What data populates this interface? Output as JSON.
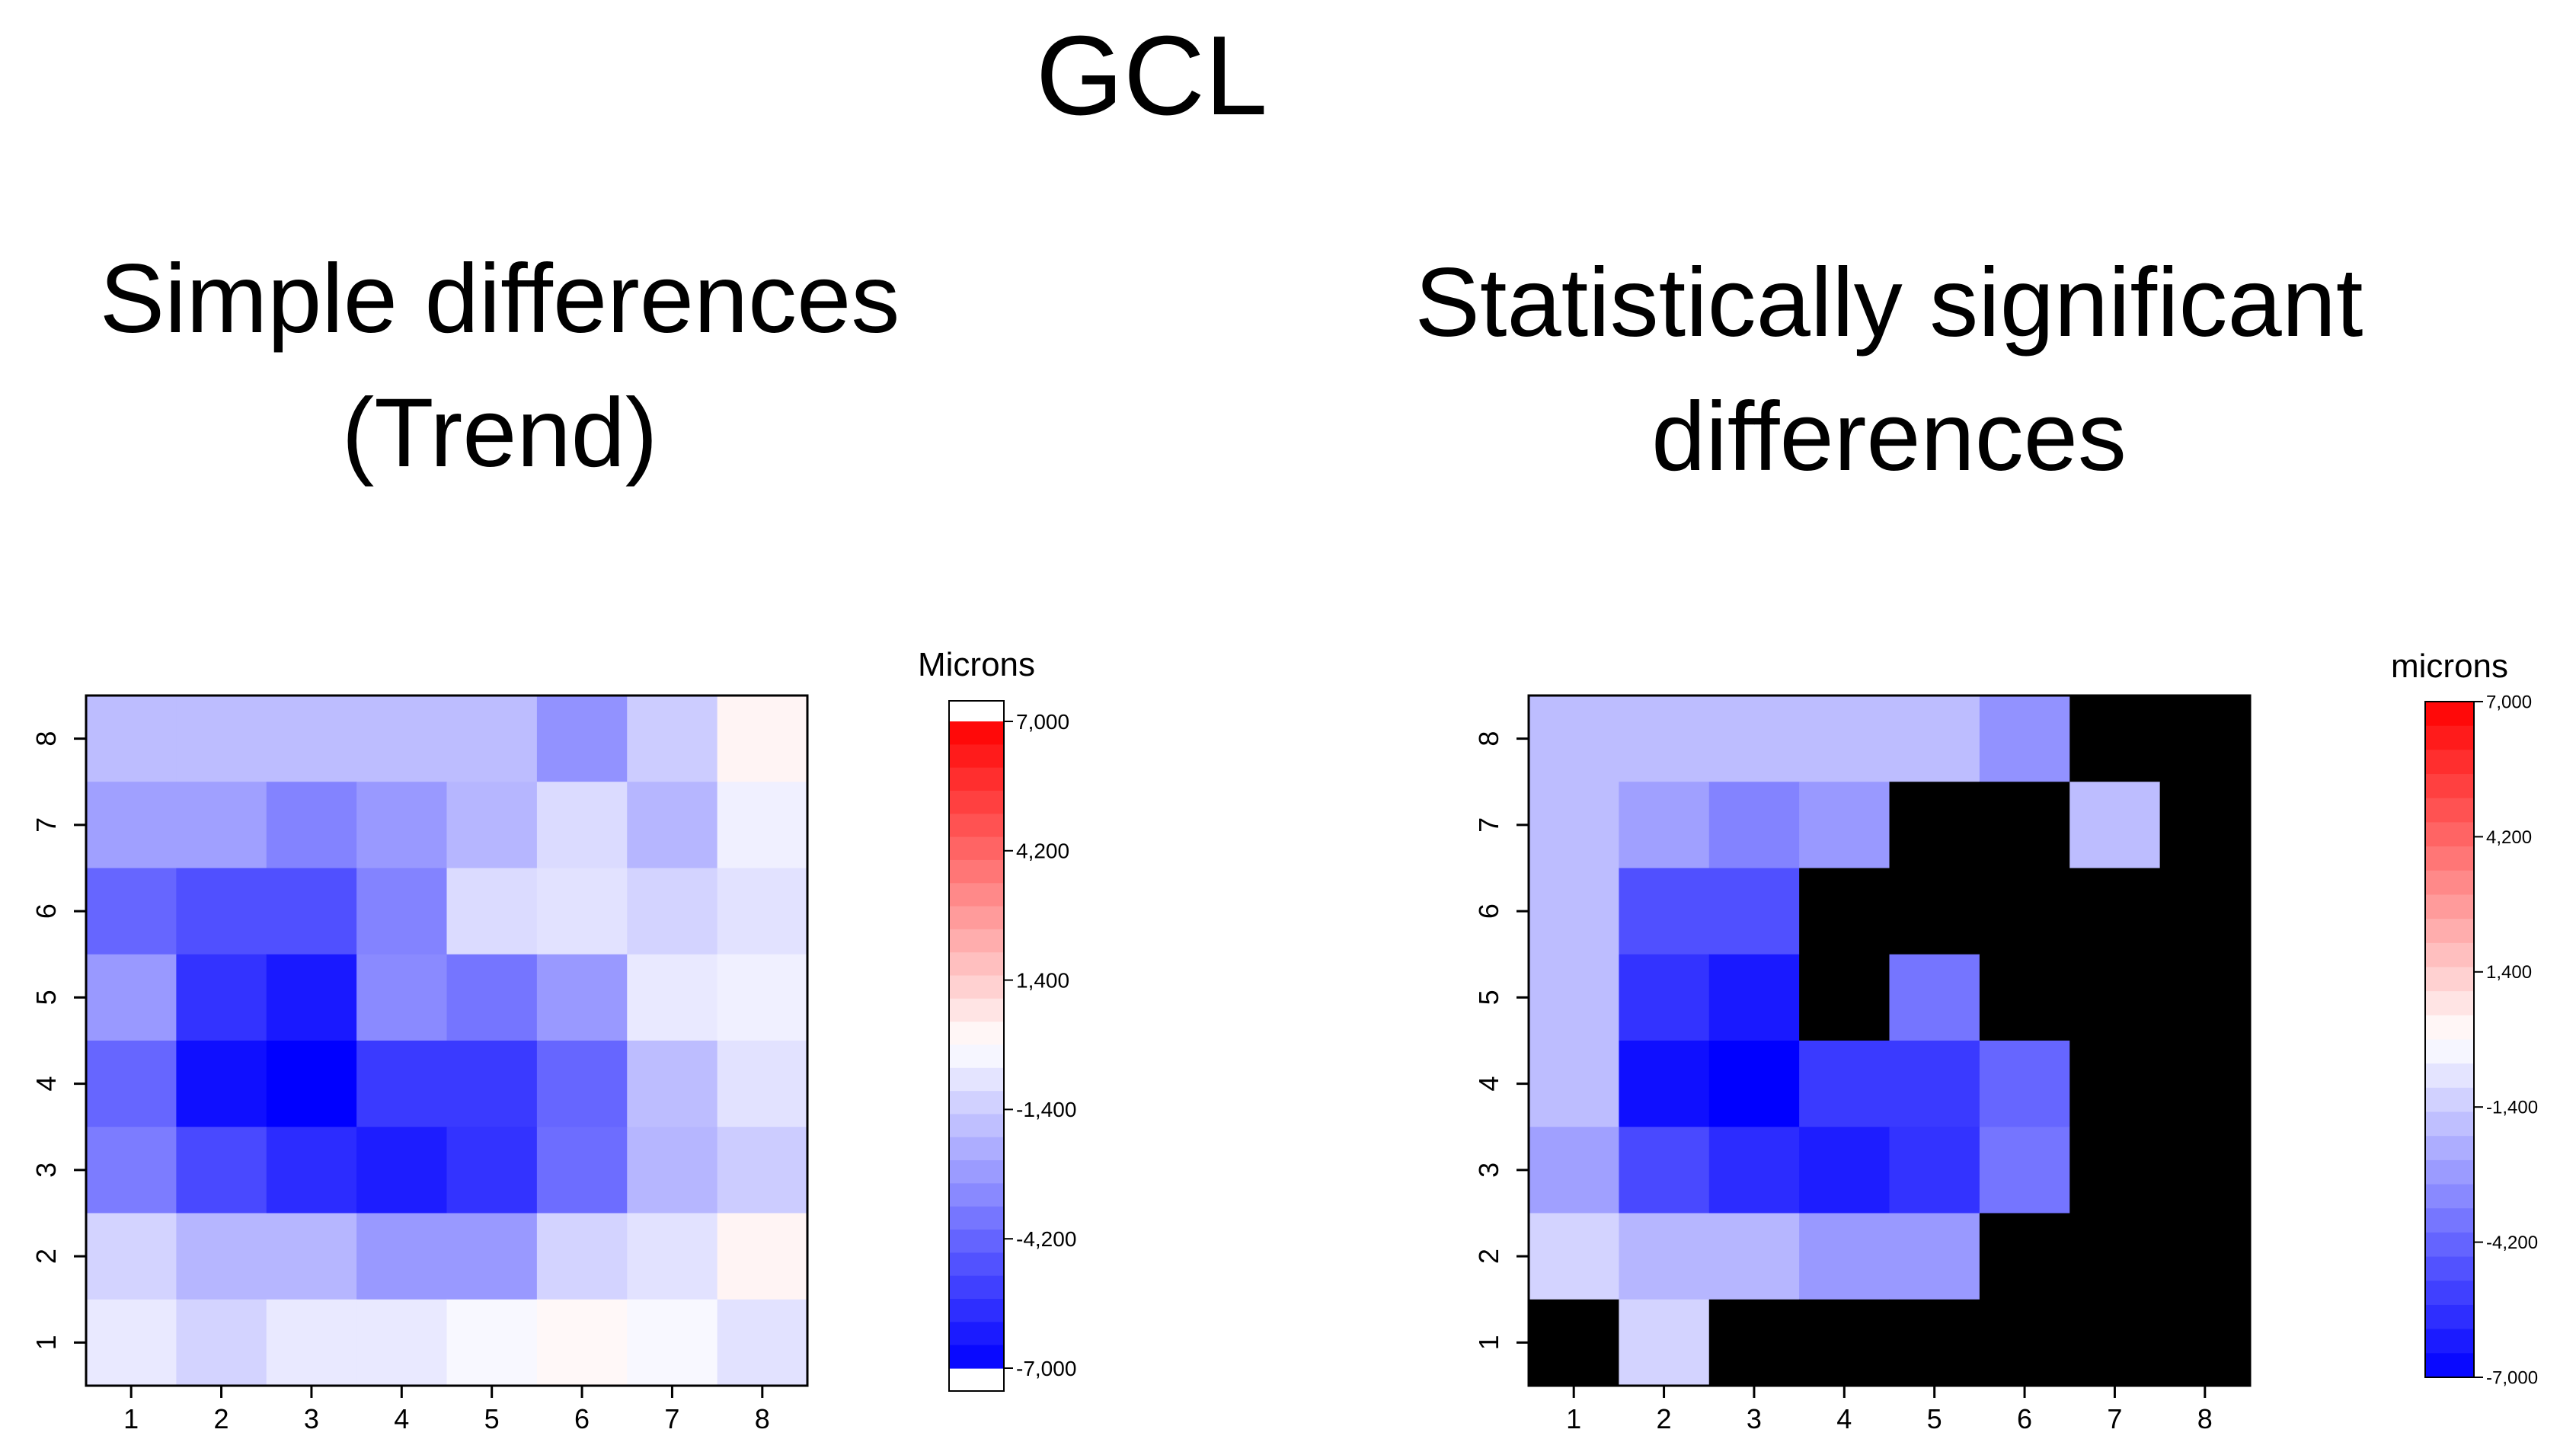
{
  "title": "GCL",
  "chart_data": [
    {
      "type": "heatmap",
      "title": "Simple differences",
      "subtitle": "(Trend)",
      "x_ticks": [
        "1",
        "2",
        "3",
        "4",
        "5",
        "6",
        "7",
        "8"
      ],
      "y_ticks": [
        "1",
        "2",
        "3",
        "4",
        "5",
        "6",
        "7",
        "8"
      ],
      "rows_top_to_bottom": [
        [
          -1800,
          -1800,
          -1800,
          -1800,
          -1800,
          -3000,
          -1400,
          300
        ],
        [
          -2600,
          -2600,
          -3400,
          -2800,
          -2000,
          -1000,
          -2000,
          -400
        ],
        [
          -4200,
          -4800,
          -4800,
          -3400,
          -1000,
          -800,
          -1200,
          -800
        ],
        [
          -2800,
          -5600,
          -6300,
          -3200,
          -3800,
          -2800,
          -600,
          -400
        ],
        [
          -4200,
          -6600,
          -7000,
          -5400,
          -5400,
          -4200,
          -1800,
          -800
        ],
        [
          -3600,
          -5000,
          -5800,
          -6200,
          -5600,
          -4000,
          -2000,
          -1400
        ],
        [
          -1200,
          -2000,
          -2000,
          -2800,
          -2800,
          -1200,
          -800,
          300
        ],
        [
          -600,
          -1200,
          -600,
          -600,
          -200,
          200,
          -200,
          -800
        ]
      ],
      "legend": {
        "title": "Microns",
        "ticks": [
          "7,000",
          "4,200",
          "1,400",
          "-1,400",
          "-4,200",
          "-7,000"
        ],
        "tick_values": [
          7000,
          4200,
          1400,
          -1400,
          -4200,
          -7000
        ],
        "range": [
          -7000,
          7000
        ]
      }
    },
    {
      "type": "heatmap",
      "title": "Statistically significant",
      "subtitle": "differences",
      "x_ticks": [
        "1",
        "2",
        "3",
        "4",
        "5",
        "6",
        "7",
        "8"
      ],
      "y_ticks": [
        "1",
        "2",
        "3",
        "4",
        "5",
        "6",
        "7",
        "8"
      ],
      "non_significant_color": "#000000",
      "rows_top_to_bottom": [
        [
          -1800,
          -1800,
          -1800,
          -1800,
          -1800,
          -3000,
          null,
          null
        ],
        [
          -1800,
          -2600,
          -3400,
          -2800,
          null,
          null,
          -1800,
          null
        ],
        [
          -1800,
          -4800,
          -4800,
          null,
          null,
          null,
          null,
          null
        ],
        [
          -1800,
          -5600,
          -6300,
          null,
          -3800,
          null,
          null,
          null
        ],
        [
          -1800,
          -6600,
          -7000,
          -5400,
          -5400,
          -4200,
          null,
          null
        ],
        [
          -2600,
          -5000,
          -5800,
          -6200,
          -5600,
          -3800,
          null,
          null
        ],
        [
          -1200,
          -2000,
          -2000,
          -2800,
          -2800,
          null,
          null,
          null
        ],
        [
          null,
          -1200,
          null,
          null,
          null,
          null,
          null,
          null
        ]
      ],
      "legend": {
        "title": "microns",
        "ticks": [
          "7,000",
          "4,200",
          "1,400",
          "-1,400",
          "-4,200",
          "-7,000"
        ],
        "tick_values": [
          7000,
          4200,
          1400,
          -1400,
          -4200,
          -7000
        ],
        "range": [
          -7000,
          7000
        ]
      }
    }
  ]
}
